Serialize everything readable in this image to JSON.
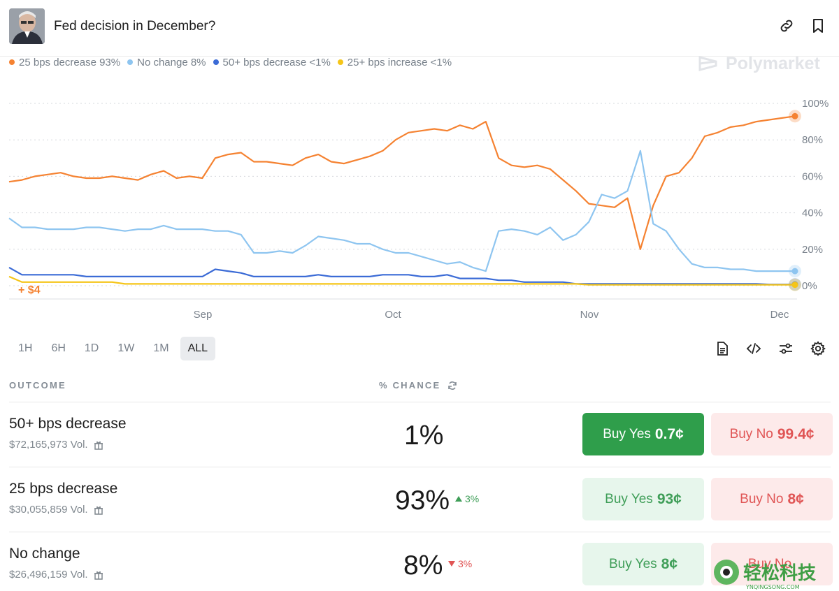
{
  "header": {
    "title": "Fed decision in December?"
  },
  "legend": [
    {
      "label": "25 bps decrease 93%",
      "color": "#f58231"
    },
    {
      "label": "No change 8%",
      "color": "#8ec5f0"
    },
    {
      "label": "50+ bps decrease <1%",
      "color": "#3b6bd6"
    },
    {
      "label": "25+ bps increase <1%",
      "color": "#f5c518"
    }
  ],
  "watermark": "Polymarket",
  "chart_data": {
    "type": "line",
    "x_ticks": [
      "Sep",
      "Oct",
      "Nov",
      "Dec"
    ],
    "y_ticks": [
      "100%",
      "80%",
      "60%",
      "40%",
      "20%",
      "0%"
    ],
    "ylim": [
      0,
      100
    ],
    "annotation": "+ $4",
    "series": [
      {
        "name": "25 bps decrease",
        "color": "#f58231",
        "values": [
          57,
          58,
          60,
          61,
          62,
          60,
          59,
          59,
          60,
          59,
          58,
          61,
          63,
          59,
          60,
          59,
          70,
          72,
          73,
          68,
          68,
          67,
          66,
          70,
          72,
          68,
          67,
          69,
          71,
          74,
          80,
          84,
          85,
          86,
          85,
          88,
          86,
          90,
          70,
          66,
          65,
          66,
          64,
          58,
          52,
          45,
          44,
          43,
          48,
          20,
          44,
          60,
          62,
          70,
          82,
          84,
          87,
          88,
          90,
          91,
          92,
          93
        ]
      },
      {
        "name": "No change",
        "color": "#8ec5f0",
        "values": [
          37,
          32,
          32,
          31,
          31,
          31,
          32,
          32,
          31,
          30,
          31,
          31,
          33,
          31,
          31,
          31,
          30,
          30,
          28,
          18,
          18,
          19,
          18,
          22,
          27,
          26,
          25,
          23,
          23,
          20,
          18,
          18,
          16,
          14,
          12,
          13,
          10,
          8,
          30,
          31,
          30,
          28,
          32,
          25,
          28,
          35,
          50,
          48,
          52,
          74,
          34,
          30,
          20,
          12,
          10,
          10,
          9,
          9,
          8,
          8,
          8,
          8
        ]
      },
      {
        "name": "50+ bps decrease",
        "color": "#3b6bd6",
        "values": [
          10,
          6,
          6,
          6,
          6,
          6,
          5,
          5,
          5,
          5,
          5,
          5,
          5,
          5,
          5,
          5,
          9,
          8,
          7,
          5,
          5,
          5,
          5,
          5,
          6,
          5,
          5,
          5,
          5,
          6,
          6,
          6,
          5,
          5,
          6,
          4,
          4,
          4,
          3,
          3,
          2,
          2,
          2,
          2,
          1,
          1,
          1,
          1,
          1,
          1,
          1,
          1,
          1,
          1,
          1,
          1,
          1,
          1,
          1,
          0.7,
          0.7,
          0.7
        ]
      },
      {
        "name": "25+ bps increase",
        "color": "#f5c518",
        "values": [
          5,
          2,
          2,
          2,
          2,
          2,
          2,
          2,
          2,
          1,
          1,
          1,
          1,
          1,
          1,
          1,
          1,
          1,
          1,
          1,
          1,
          1,
          1,
          1,
          1,
          1,
          1,
          1,
          1,
          1,
          1,
          1,
          1,
          1,
          1,
          1,
          1,
          1,
          1,
          1,
          1,
          1,
          1,
          1,
          1,
          0.5,
          0.5,
          0.5,
          0.5,
          0.5,
          0.5,
          0.5,
          0.5,
          0.5,
          0.5,
          0.5,
          0.5,
          0.5,
          0.5,
          0.5,
          0.5,
          0.5
        ]
      }
    ]
  },
  "ranges": [
    "1H",
    "6H",
    "1D",
    "1W",
    "1M",
    "ALL"
  ],
  "active_range": "ALL",
  "table": {
    "col_outcome": "OUTCOME",
    "col_chance": "% CHANCE",
    "rows": [
      {
        "name": "50+ bps decrease",
        "volume": "$72,165,973 Vol.",
        "chance": "1%",
        "delta": "",
        "yes_label": "Buy Yes",
        "yes_price": "0.7¢",
        "no_label": "Buy No",
        "no_price": "99.4¢"
      },
      {
        "name": "25 bps decrease",
        "volume": "$30,055,859 Vol.",
        "chance": "93%",
        "delta": "3%",
        "yes_label": "Buy Yes",
        "yes_price": "93¢",
        "no_label": "Buy No",
        "no_price": "8¢"
      },
      {
        "name": "No change",
        "volume": "$26,496,159 Vol.",
        "chance": "8%",
        "delta": "3%",
        "yes_label": "Buy Yes",
        "yes_price": "8¢",
        "no_label": "Buy No",
        "no_price": ""
      }
    ]
  },
  "site_watermark": {
    "cn": "轻松科技",
    "url": "YNQINGSONG.COM"
  }
}
